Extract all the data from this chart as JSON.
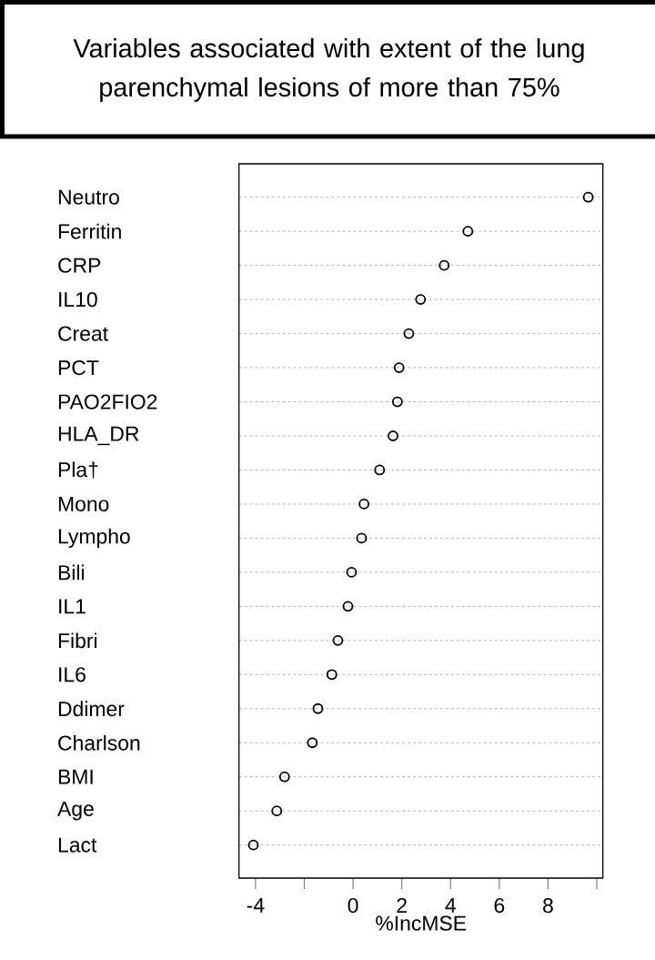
{
  "chart_data": {
    "type": "scatter",
    "title": "Variables associated with extent of the lung parenchymal lesions of more than 75%",
    "xlabel": "%IncMSE",
    "orientation": "horizontal",
    "categories": [
      "Neutro",
      "Ferritin",
      "CRP",
      "IL10",
      "Creat",
      "PCT",
      "PAO2FIO2",
      "HLA_DR",
      "Pla†",
      "Mono",
      "Lympho",
      "Bili",
      "IL1",
      "Fibri",
      "IL6",
      "Ddimer",
      "Charlson",
      "BMI",
      "Age",
      "Lact"
    ],
    "values": [
      9.65,
      4.71,
      3.74,
      2.77,
      2.29,
      1.89,
      1.82,
      1.64,
      1.09,
      0.45,
      0.35,
      -0.06,
      -0.21,
      -0.62,
      -0.87,
      -1.44,
      -1.67,
      -2.81,
      -3.13,
      -4.09
    ],
    "color": "#000000",
    "marker": "circle",
    "grid": "y",
    "xlim": [
      -4.68,
      10.25
    ],
    "xticks": [
      -4,
      {
        "value": -2,
        "label": null
      },
      0,
      2,
      4,
      6,
      8,
      {
        "value": 10,
        "label": null
      }
    ]
  }
}
